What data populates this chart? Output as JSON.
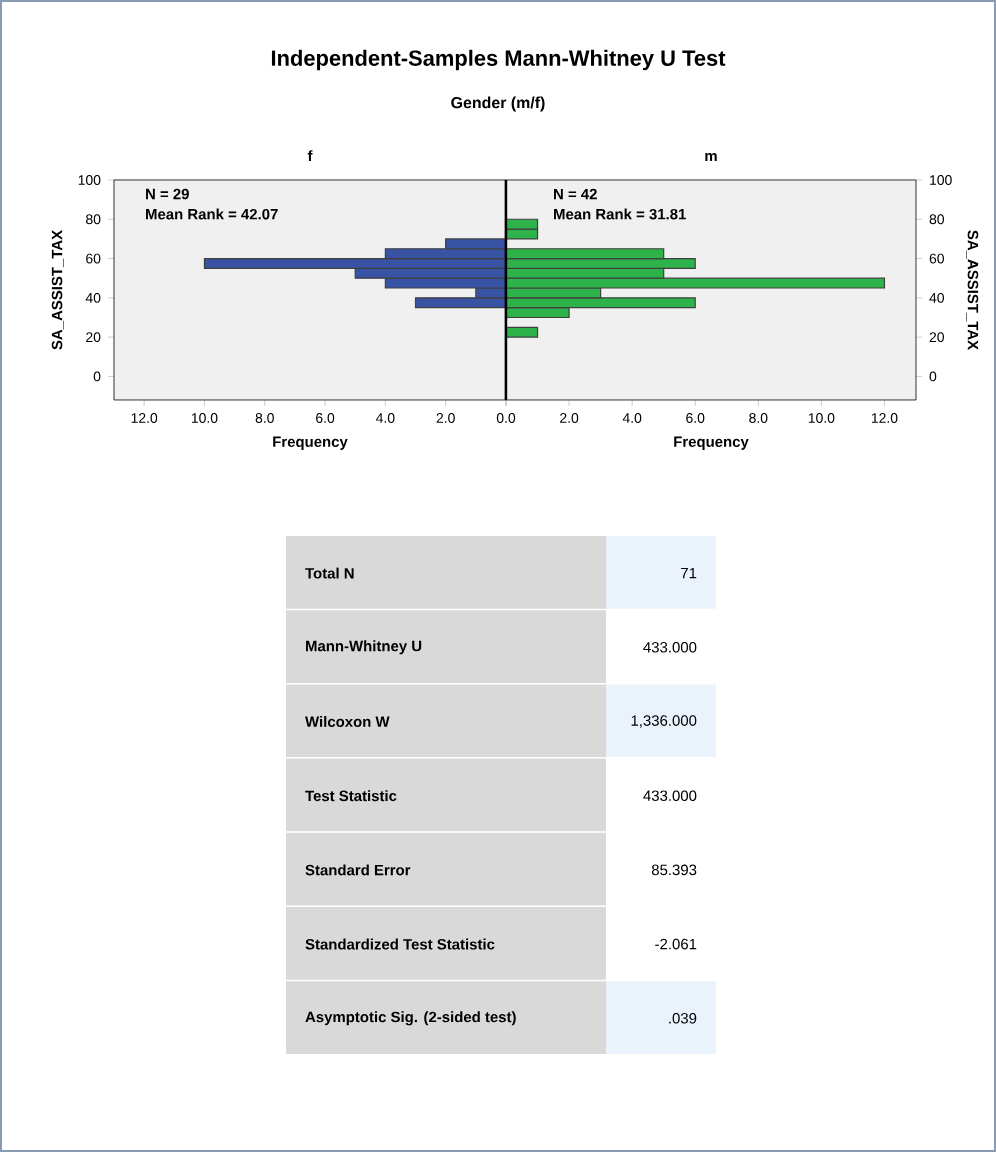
{
  "chart_data": [
    {
      "type": "other",
      "title": "Independent-Samples Mann-Whitney U Test",
      "subtitle": "Gender (m/f)"
    },
    {
      "type": "histogram",
      "orientation": "horizontal",
      "title": "f",
      "xlabel": "Frequency",
      "ylabel": "SA_ASSIST_TAX",
      "color": "#3953a4",
      "bins": [
        20,
        25,
        30,
        35,
        40,
        45,
        50,
        55,
        60,
        65,
        70,
        75,
        80
      ],
      "values": [
        0,
        0,
        0,
        3,
        1,
        4,
        5,
        10,
        4,
        2,
        0,
        0
      ],
      "xlim": [
        13,
        0
      ],
      "xticks": [
        {
          "value": 12,
          "label": "12.0"
        },
        {
          "value": 10,
          "label": "10.0"
        },
        {
          "value": 8,
          "label": "8.0"
        },
        {
          "value": 6,
          "label": "6.0"
        },
        {
          "value": 4,
          "label": "4.0"
        },
        {
          "value": 2,
          "label": "2.0"
        },
        {
          "value": 0,
          "label": null
        }
      ],
      "ylim": [
        -12,
        100
      ],
      "yticks": [
        0,
        20,
        40,
        60,
        80,
        100
      ],
      "annotations": [
        "N = 29",
        "Mean Rank = 42.07"
      ]
    },
    {
      "type": "histogram",
      "orientation": "horizontal",
      "title": "m",
      "xlabel": "Frequency",
      "ylabel": "SA_ASSIST_TAX",
      "color": "#2eb24a",
      "bins": [
        20,
        25,
        30,
        35,
        40,
        45,
        50,
        55,
        60,
        65,
        70,
        75,
        80
      ],
      "values": [
        1,
        0,
        2,
        6,
        3,
        12,
        5,
        6,
        5,
        0,
        1,
        1
      ],
      "xlim": [
        0,
        13
      ],
      "xticks": [
        {
          "value": 0,
          "label": "0.0"
        },
        {
          "value": 2,
          "label": "2.0"
        },
        {
          "value": 4,
          "label": "4.0"
        },
        {
          "value": 6,
          "label": "6.0"
        },
        {
          "value": 8,
          "label": "8.0"
        },
        {
          "value": 10,
          "label": "10.0"
        },
        {
          "value": 12,
          "label": "12.0"
        }
      ],
      "ylim": [
        -12,
        100
      ],
      "yticks": [
        0,
        20,
        40,
        60,
        80,
        100
      ],
      "annotations": [
        "N = 42",
        "Mean Rank = 31.81"
      ]
    },
    {
      "type": "other",
      "annotations": [
        "Total N",
        "71",
        "Mann-Whitney U",
        "433.000",
        "Wilcoxon W",
        "1,336.000",
        "Test Statistic",
        "433.000",
        "Standard Error",
        "85.393",
        "Standardized Test Statistic",
        "-2.061",
        "Asymptotic Sig. (2-sided test)",
        ".039"
      ]
    }
  ]
}
